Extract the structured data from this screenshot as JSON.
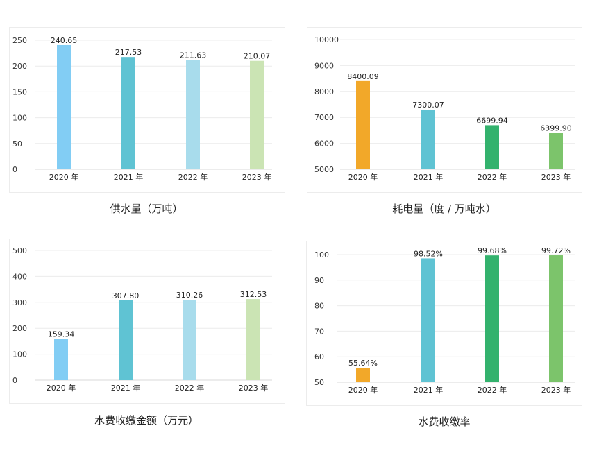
{
  "chart_data": [
    {
      "type": "bar",
      "title": "供水量（万吨）",
      "categories": [
        "2020 年",
        "2021 年",
        "2022 年",
        "2023 年"
      ],
      "values": [
        240.65,
        217.53,
        211.63,
        210.07
      ],
      "value_labels": [
        "240.65",
        "217.53",
        "211.63",
        "210.07"
      ],
      "colors": [
        "#82cdf4",
        "#5fc3d3",
        "#a8dcec",
        "#cbe4b4"
      ],
      "ylim": [
        0,
        250
      ],
      "yticks": [
        "0",
        "50",
        "100",
        "150",
        "200",
        "250"
      ],
      "grid": true
    },
    {
      "type": "bar",
      "title": "耗电量（度 / 万吨水）",
      "categories": [
        "2020 年",
        "2021 年",
        "2022 年",
        "2023 年"
      ],
      "values": [
        8400.09,
        7300.07,
        6699.94,
        6399.9
      ],
      "value_labels": [
        "8400.09",
        "7300.07",
        "6699.94",
        "6399.90"
      ],
      "colors": [
        "#f2a829",
        "#5fc3d3",
        "#33b26d",
        "#7cc46b"
      ],
      "ylim": [
        5000,
        10000
      ],
      "yticks": [
        "5000",
        "6000",
        "7000",
        "8000",
        "9000",
        "10000"
      ],
      "grid": true
    },
    {
      "type": "bar",
      "title": "水费收缴金额（万元）",
      "categories": [
        "2020 年",
        "2021 年",
        "2022 年",
        "2023 年"
      ],
      "values": [
        159.34,
        307.8,
        310.26,
        312.53
      ],
      "value_labels": [
        "159.34",
        "307.80",
        "310.26",
        "312.53"
      ],
      "colors": [
        "#82cdf4",
        "#5fc3d3",
        "#a8dcec",
        "#cbe4b4"
      ],
      "ylim": [
        0,
        500
      ],
      "yticks": [
        "0",
        "100",
        "200",
        "300",
        "400",
        "500"
      ],
      "grid": true
    },
    {
      "type": "bar",
      "title": "水费收缴率",
      "categories": [
        "2020 年",
        "2021 年",
        "2022 年",
        "2023 年"
      ],
      "values": [
        55.64,
        98.52,
        99.68,
        99.72
      ],
      "value_labels": [
        "55.64%",
        "98.52%",
        "99.68%",
        "99.72%"
      ],
      "colors": [
        "#f2a829",
        "#5fc3d3",
        "#33b26d",
        "#7cc46b"
      ],
      "ylim": [
        50,
        100
      ],
      "yticks": [
        "50",
        "60",
        "70",
        "80",
        "90",
        "100"
      ],
      "grid": true
    }
  ]
}
